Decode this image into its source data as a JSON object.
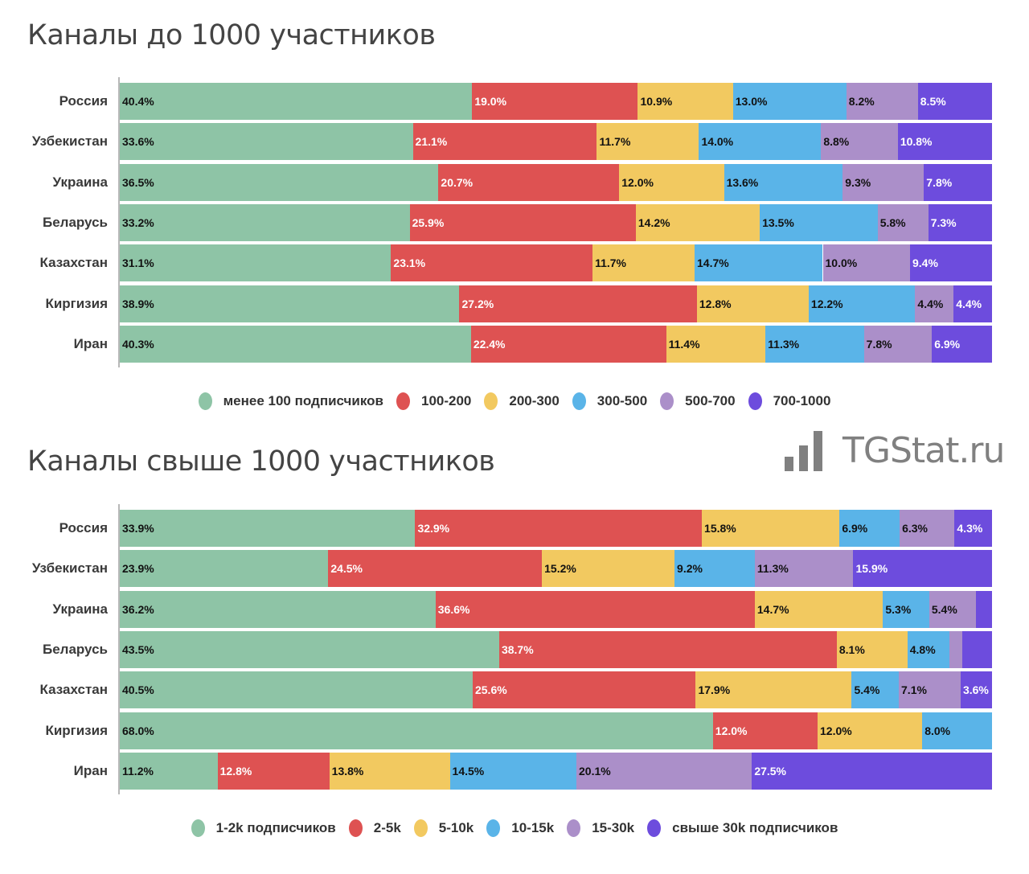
{
  "logo": {
    "text": "TGStat.ru"
  },
  "chart_data": [
    {
      "type": "bar",
      "orientation": "horizontal",
      "stacked": "100%",
      "title": "Каналы до 1000 участников",
      "categories": [
        "Россия",
        "Узбекистан",
        "Украина",
        "Беларусь",
        "Казахстан",
        "Киргизия",
        "Иран"
      ],
      "series": [
        {
          "name": "менее 100 подписчиков",
          "color": "#8ec4a6",
          "label_color": "#111111",
          "values": [
            40.4,
            33.6,
            36.5,
            33.2,
            31.1,
            38.9,
            40.3
          ]
        },
        {
          "name": "100-200",
          "color": "#de5252",
          "label_color": "#ffffff",
          "values": [
            19.0,
            21.1,
            20.7,
            25.9,
            23.1,
            27.2,
            22.4
          ]
        },
        {
          "name": "200-300",
          "color": "#f2c960",
          "label_color": "#111111",
          "values": [
            10.9,
            11.7,
            12.0,
            14.2,
            11.7,
            12.8,
            11.4
          ]
        },
        {
          "name": "300-500",
          "color": "#5ab4e8",
          "label_color": "#111111",
          "values": [
            13.0,
            14.0,
            13.6,
            13.5,
            14.7,
            12.2,
            11.3
          ]
        },
        {
          "name": "500-700",
          "color": "#ab8fc9",
          "label_color": "#111111",
          "values": [
            8.2,
            8.8,
            9.3,
            5.8,
            10.0,
            4.4,
            7.8
          ]
        },
        {
          "name": "700-1000",
          "color": "#6d4cdd",
          "label_color": "#ffffff",
          "values": [
            8.5,
            10.8,
            7.8,
            7.3,
            9.4,
            4.4,
            6.9
          ]
        }
      ],
      "xlim": [
        0,
        100
      ],
      "legend": "bottom",
      "grid": false
    },
    {
      "type": "bar",
      "orientation": "horizontal",
      "stacked": "100%",
      "title": "Каналы свыше 1000 участников",
      "categories": [
        "Россия",
        "Узбекистан",
        "Украина",
        "Беларусь",
        "Казахстан",
        "Киргизия",
        "Иран"
      ],
      "series": [
        {
          "name": "1-2k подписчиков",
          "color": "#8ec4a6",
          "label_color": "#111111",
          "values": [
            33.9,
            23.9,
            36.2,
            43.5,
            40.5,
            68.0,
            11.2
          ]
        },
        {
          "name": "2-5k",
          "color": "#de5252",
          "label_color": "#ffffff",
          "values": [
            32.9,
            24.5,
            36.6,
            38.7,
            25.6,
            12.0,
            12.8
          ]
        },
        {
          "name": "5-10k",
          "color": "#f2c960",
          "label_color": "#111111",
          "values": [
            15.8,
            15.2,
            14.7,
            8.1,
            17.9,
            12.0,
            13.8
          ]
        },
        {
          "name": "10-15k",
          "color": "#5ab4e8",
          "label_color": "#111111",
          "values": [
            6.9,
            9.2,
            5.3,
            4.8,
            5.4,
            8.0,
            14.5
          ]
        },
        {
          "name": "15-30k",
          "color": "#ab8fc9",
          "label_color": "#111111",
          "values": [
            6.3,
            11.3,
            5.4,
            1.5,
            7.1,
            0,
            20.1
          ]
        },
        {
          "name": "свыше 30k подписчиков",
          "color": "#6d4cdd",
          "label_color": "#ffffff",
          "values": [
            4.3,
            15.9,
            1.8,
            3.4,
            3.6,
            0,
            27.5
          ]
        }
      ],
      "hidden_labels": {
        "Украина": [
          "свыше 30k подписчиков"
        ],
        "Беларусь": [
          "15-30k",
          "свыше 30k подписчиков"
        ]
      },
      "xlim": [
        0,
        100
      ],
      "legend": "bottom",
      "grid": false
    }
  ]
}
